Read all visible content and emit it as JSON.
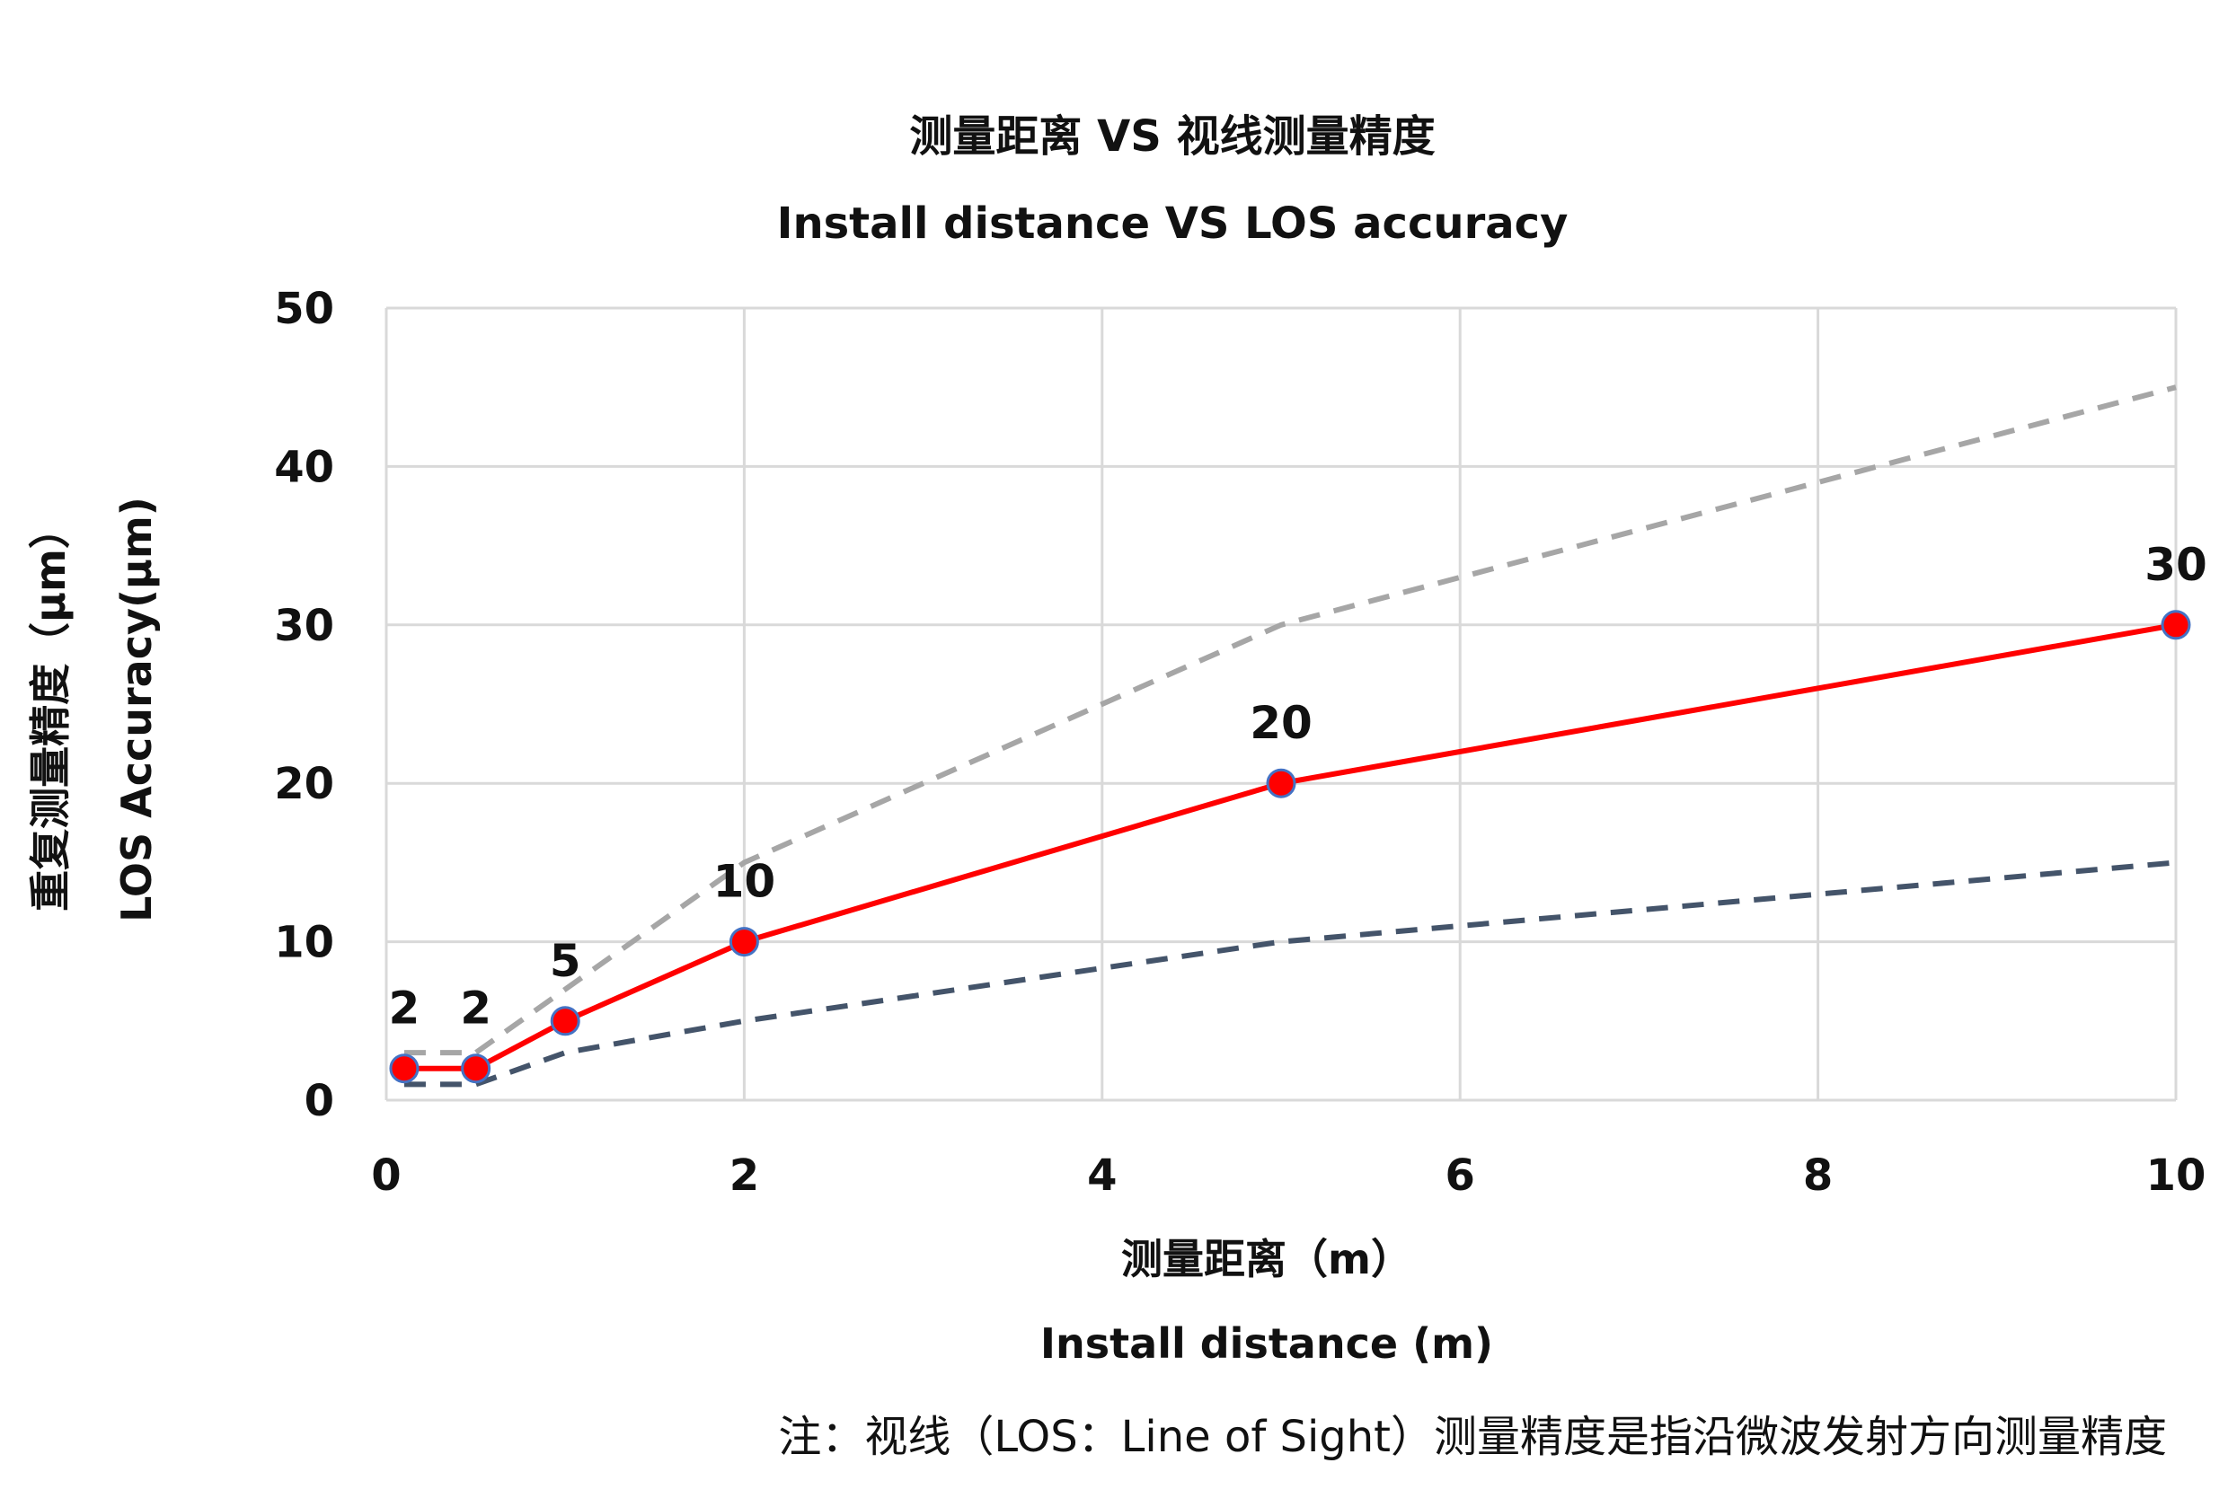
{
  "chart_data": {
    "type": "line",
    "title": "测量距离 VS 视线测量精度",
    "subtitle": "Install distance VS LOS accuracy",
    "xlabel": "测量距离（m）",
    "xlabel_en": "Install distance (m)",
    "ylabel": "重复测量精度（μm）",
    "ylabel_en": "LOS Accuracy(μm)",
    "xlim": [
      0,
      10
    ],
    "ylim": [
      0,
      50
    ],
    "x_ticks": [
      "0",
      "2",
      "4",
      "6",
      "8",
      "10"
    ],
    "y_ticks": [
      "0",
      "10",
      "20",
      "30",
      "40",
      "50"
    ],
    "grid": true,
    "legend": "none",
    "series": [
      {
        "x": [
          0.1,
          0.5,
          1,
          2,
          5,
          10
        ],
        "values": [
          2,
          2,
          5,
          10,
          20,
          30
        ],
        "data_labels": [
          "2",
          "2",
          "5",
          "10",
          "20",
          "30"
        ],
        "color": "#ff0000",
        "style": "solid",
        "markers": true
      },
      {
        "x": [
          0.1,
          0.5,
          1,
          2,
          5,
          10
        ],
        "values": [
          3,
          3,
          7,
          15,
          30,
          45
        ],
        "color": "#a6a6a6",
        "style": "dashed",
        "markers": false
      },
      {
        "x": [
          0.1,
          0.5,
          1,
          2,
          5,
          10
        ],
        "values": [
          1,
          1,
          3,
          5,
          10,
          15
        ],
        "color": "#44546a",
        "style": "dashed",
        "markers": false
      }
    ]
  },
  "note": "注：视线（LOS：Line of Sight）测量精度是指沿微波发射方向测量精度",
  "colors": {
    "marker_fill": "#ff0000",
    "marker_edge": "#4472c4",
    "grid": "#d9d9d9"
  }
}
